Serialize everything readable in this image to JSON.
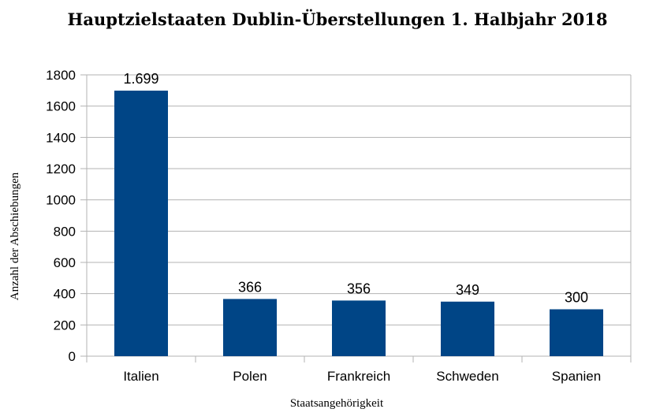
{
  "chart_data": {
    "type": "bar",
    "title": "Hauptzielstaaten Dublin-Überstellungen 1. Halbjahr 2018",
    "xlabel": "Staatsangehörigkeit",
    "ylabel": "Anzahl der Abschiebungen",
    "categories": [
      "Italien",
      "Polen",
      "Frankreich",
      "Schweden",
      "Spanien"
    ],
    "values": [
      1699,
      366,
      356,
      349,
      300
    ],
    "data_labels": [
      "1.699",
      "366",
      "356",
      "349",
      "300"
    ],
    "ylim": [
      0,
      1800
    ],
    "yticks": [
      "0",
      "200",
      "400",
      "600",
      "800",
      "1000",
      "1200",
      "1400",
      "1600",
      "1800"
    ],
    "grid": true,
    "legend": "none",
    "bar_color": "#004586"
  }
}
